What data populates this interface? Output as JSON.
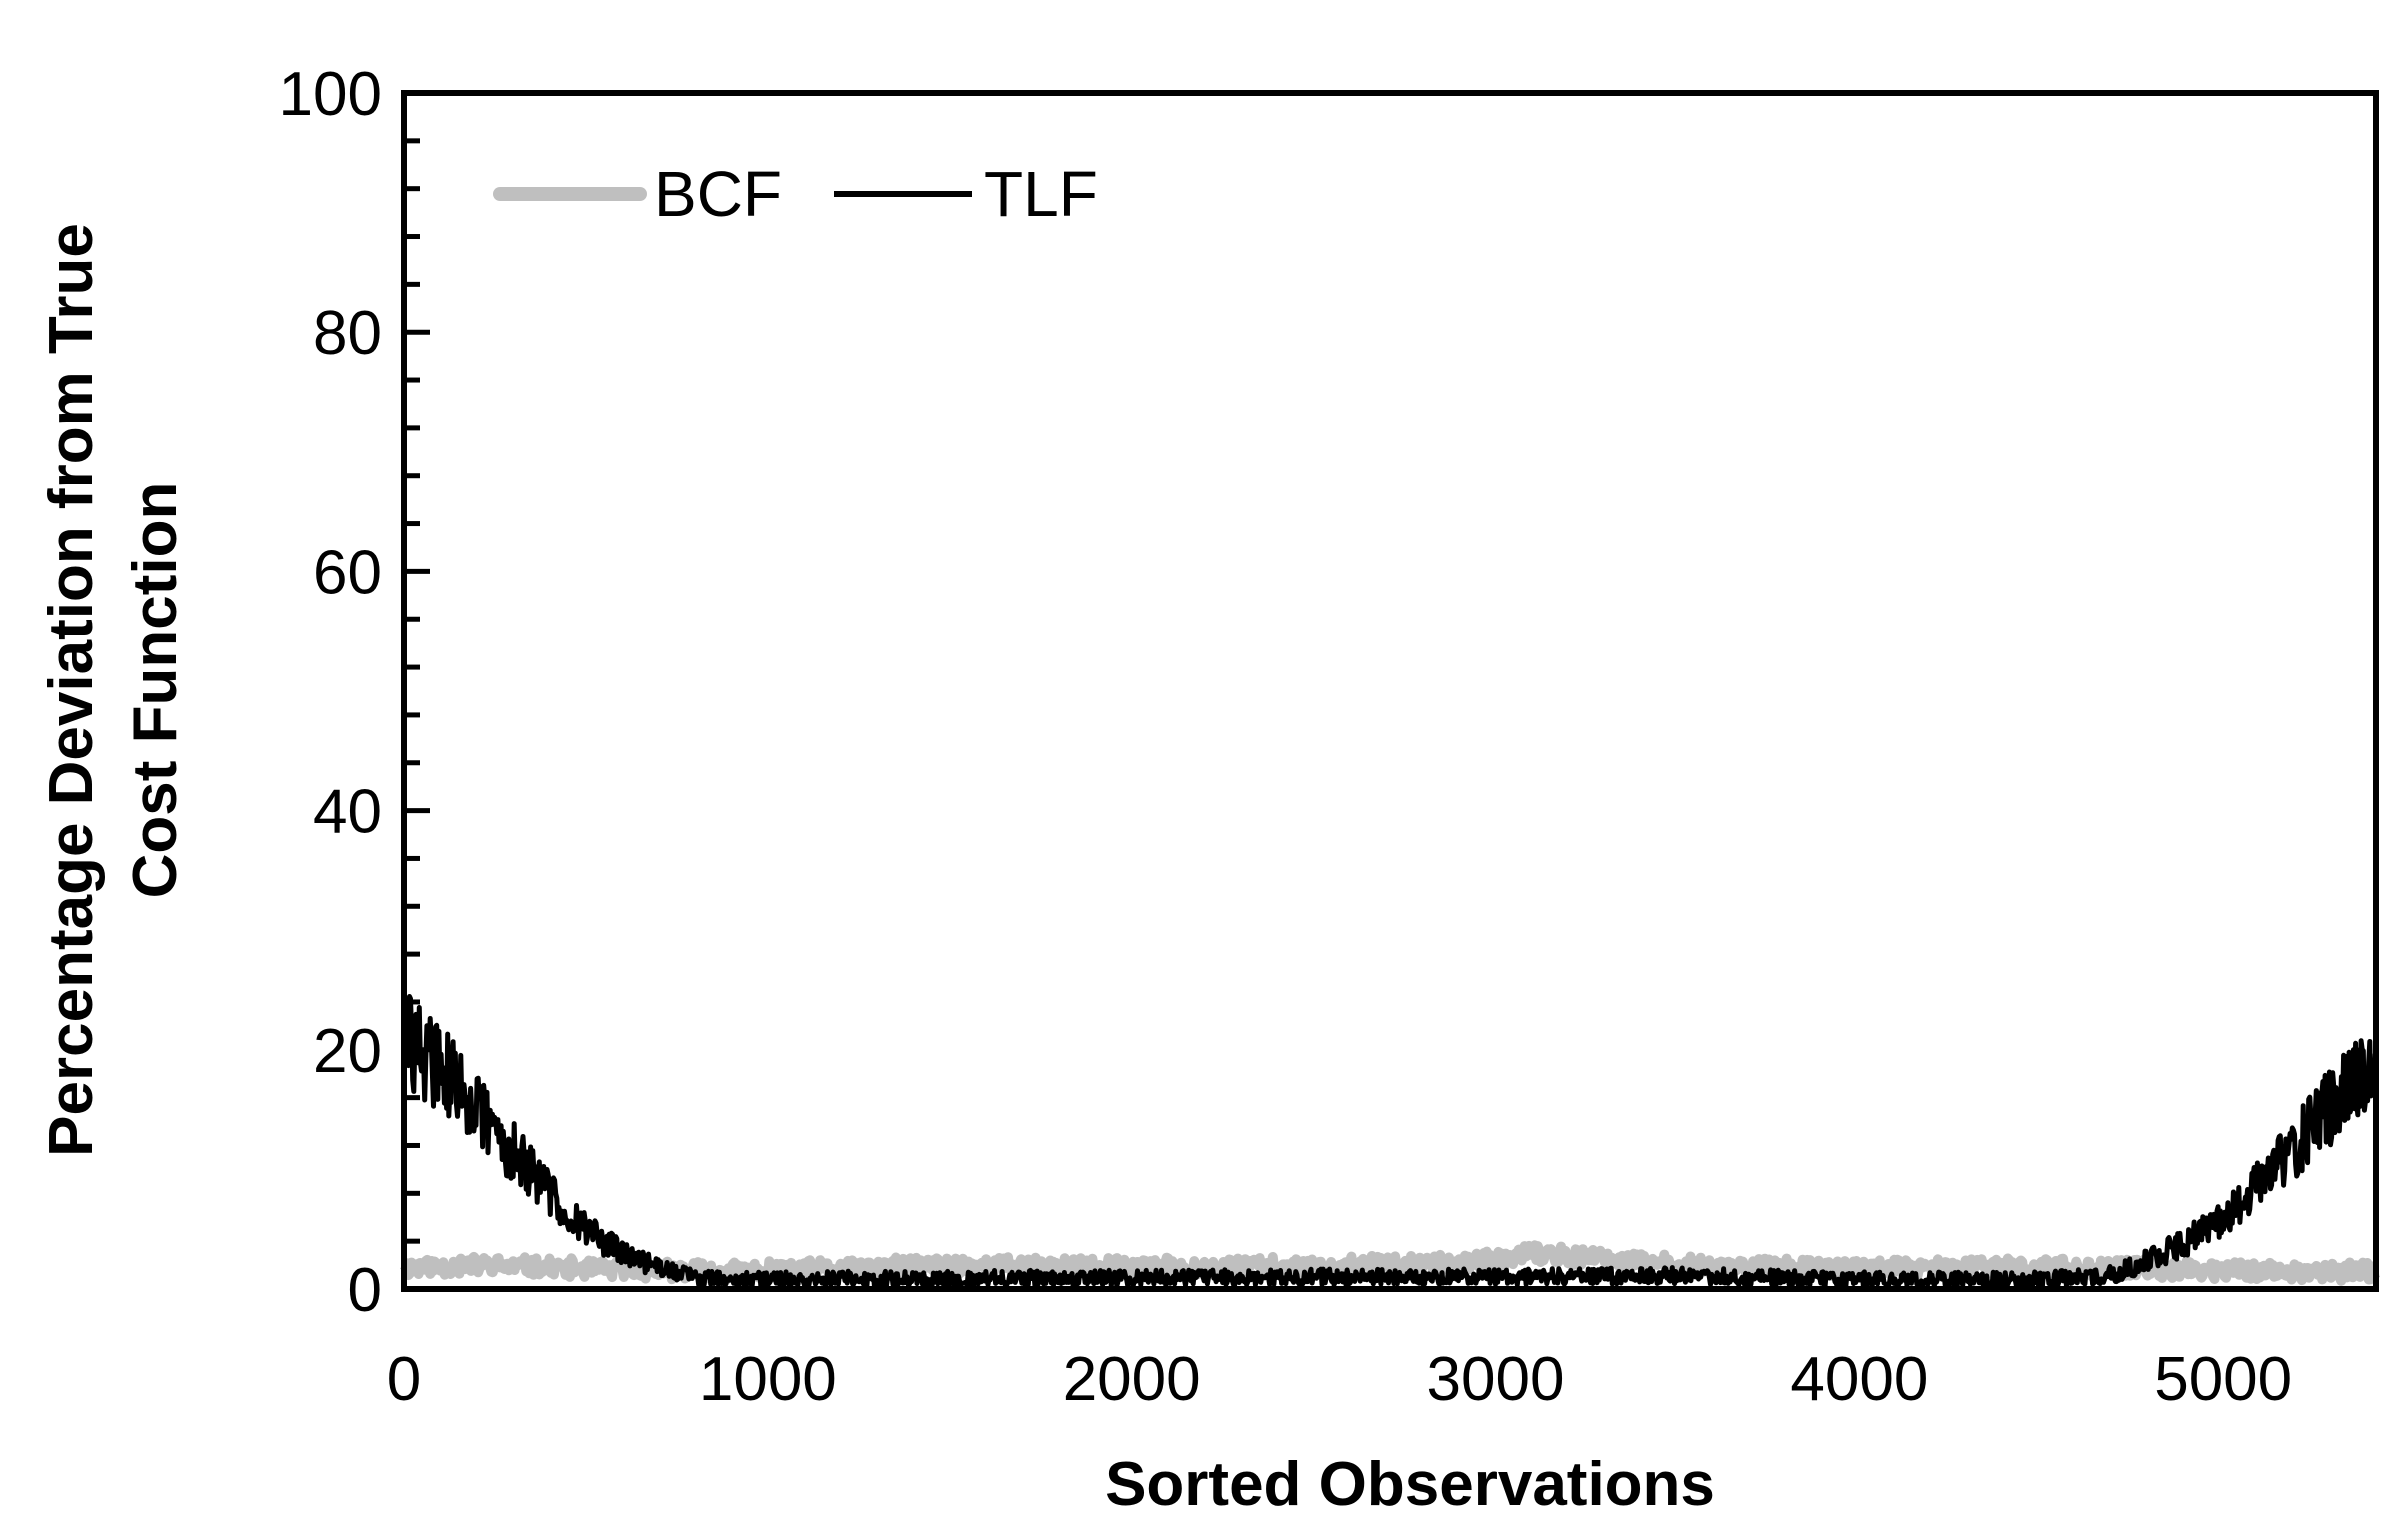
{
  "chart_data": {
    "type": "line",
    "title": "",
    "xlabel": "Sorted Observations",
    "ylabel_lines": [
      "Percentage Deviation from True",
      "Cost Function"
    ],
    "xlim": [
      0,
      5420
    ],
    "ylim": [
      0,
      100
    ],
    "x_ticks": [
      0,
      1000,
      2000,
      3000,
      4000,
      5000
    ],
    "x_tick_labels": [
      "0",
      "1000",
      "2000",
      "3000",
      "4000",
      "5000"
    ],
    "y_ticks": [
      0,
      20,
      40,
      60,
      80,
      100
    ],
    "y_tick_labels": [
      "0",
      "20",
      "40",
      "60",
      "80",
      "100"
    ],
    "y_minor_step": 4,
    "grid": false,
    "legend_position": "top-left",
    "series": [
      {
        "name": "BCF",
        "color": "#bfbfbf",
        "x": [
          0,
          200,
          400,
          600,
          800,
          1000,
          1500,
          2000,
          2500,
          3000,
          3100,
          3500,
          4000,
          4500,
          5000,
          5420
        ],
        "y": [
          1.8,
          2.0,
          1.8,
          1.6,
          1.5,
          1.5,
          2.0,
          1.8,
          1.9,
          2.3,
          3.0,
          2.0,
          1.7,
          1.8,
          1.6,
          1.4
        ]
      },
      {
        "name": "TLF",
        "color": "#000000",
        "x": [
          0,
          100,
          200,
          300,
          400,
          500,
          600,
          700,
          800,
          900,
          1000,
          1500,
          2000,
          2500,
          3000,
          3500,
          4000,
          4500,
          4700,
          4800,
          4900,
          5000,
          5100,
          5200,
          5300,
          5420
        ],
        "y": [
          21.0,
          18.5,
          15.0,
          11.5,
          8.0,
          5.0,
          3.0,
          1.8,
          1.0,
          0.8,
          0.8,
          0.9,
          0.9,
          1.0,
          1.0,
          1.1,
          0.8,
          0.8,
          1.2,
          2.5,
          4.0,
          6.0,
          9.0,
          12.0,
          15.5,
          19.0
        ]
      }
    ]
  }
}
